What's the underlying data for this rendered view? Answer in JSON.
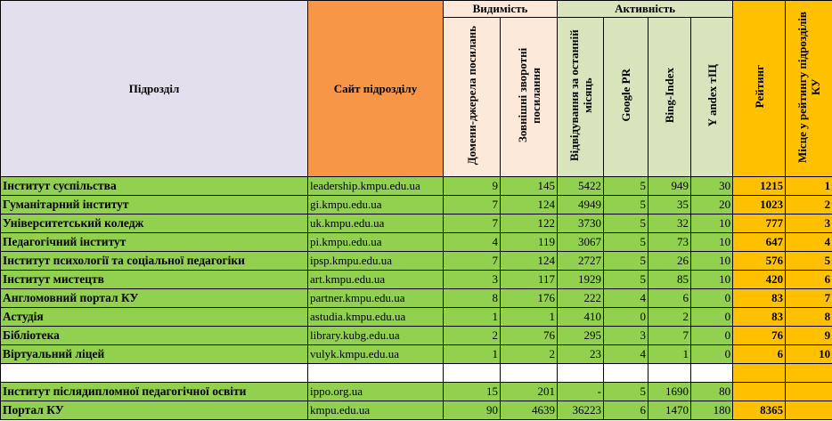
{
  "headers": {
    "subdivision": "Підрозділ",
    "site": "Сайт підрозділу",
    "visibility": "Видимість",
    "activity": "Активність",
    "rating": "Рейтинг",
    "place": "Місце у рейтингу підрозділів КУ",
    "domains": "Домени-джерела посилань",
    "backlinks": "Зовнішні зворотні посилання",
    "visits": "Відвідування за останній місяць",
    "google_pr": "Google PR",
    "bing_index": "Bing-Index",
    "yandex_tic": "Y andex тІЦ"
  },
  "rows": [
    {
      "name": "Інститут суспільства",
      "site": "leadership.kmpu.edu.ua",
      "domains": "9",
      "backlinks": "145",
      "visits": "5422",
      "pr": "5",
      "bing": "949",
      "tic": "30",
      "rating": "1215",
      "place": "1"
    },
    {
      "name": "Гуманітарний інститут",
      "site": "gi.kmpu.edu.ua",
      "domains": "7",
      "backlinks": "124",
      "visits": "4949",
      "pr": "5",
      "bing": "35",
      "tic": "20",
      "rating": "1023",
      "place": "2"
    },
    {
      "name": "Університетський коледж",
      "site": "uk.kmpu.edu.ua",
      "domains": "7",
      "backlinks": "122",
      "visits": "3730",
      "pr": "5",
      "bing": "32",
      "tic": "10",
      "rating": "777",
      "place": "3"
    },
    {
      "name": "Педагогічний інститут",
      "site": "pi.kmpu.edu.ua",
      "domains": "4",
      "backlinks": "119",
      "visits": "3067",
      "pr": "5",
      "bing": "73",
      "tic": "10",
      "rating": "647",
      "place": "4"
    },
    {
      "name": "Інститут психології та соціальної педагогіки",
      "site": "ipsp.kmpu.edu.ua",
      "domains": "7",
      "backlinks": "124",
      "visits": "2727",
      "pr": "5",
      "bing": "26",
      "tic": "10",
      "rating": "576",
      "place": "5"
    },
    {
      "name": "Інститут мистецтв",
      "site": "art.kmpu.edu.ua",
      "domains": "3",
      "backlinks": "117",
      "visits": "1929",
      "pr": "5",
      "bing": "85",
      "tic": "10",
      "rating": "420",
      "place": "6"
    },
    {
      "name": "Англомовний портал КУ",
      "site": "partner.kmpu.edu.ua",
      "domains": "8",
      "backlinks": "176",
      "visits": "222",
      "pr": "4",
      "bing": "6",
      "tic": "0",
      "rating": "83",
      "place": "7"
    },
    {
      "name": "Астудія",
      "site": "astudia.kmpu.edu.ua",
      "domains": "1",
      "backlinks": "1",
      "visits": "410",
      "pr": "0",
      "bing": "2",
      "tic": "0",
      "rating": "83",
      "place": "8"
    },
    {
      "name": "Бібліотека",
      "site": "library.kubg.edu.ua",
      "domains": "2",
      "backlinks": "76",
      "visits": "295",
      "pr": "3",
      "bing": "7",
      "tic": "0",
      "rating": "76",
      "place": "9"
    },
    {
      "name": "Віртуальний ліцей",
      "site": "vulyk.kmpu.edu.ua",
      "domains": "1",
      "backlinks": "2",
      "visits": "23",
      "pr": "4",
      "bing": "1",
      "tic": "0",
      "rating": "6",
      "place": "10"
    }
  ],
  "extra_rows": [
    {
      "name": "Інститут післядипломної педагогічної освіти",
      "site": "ippo.org.ua",
      "domains": "15",
      "backlinks": "201",
      "visits": "-",
      "pr": "5",
      "bing": "1690",
      "tic": "80",
      "rating": "",
      "place": ""
    },
    {
      "name": "Портал КУ",
      "site": "kmpu.edu.ua",
      "domains": "90",
      "backlinks": "4639",
      "visits": "36223",
      "pr": "6",
      "bing": "1470",
      "tic": "180",
      "rating": "8365",
      "place": ""
    }
  ]
}
